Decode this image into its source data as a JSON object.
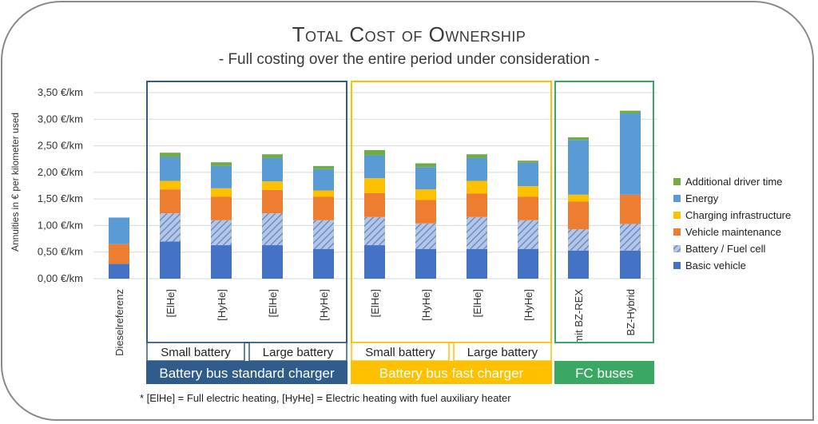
{
  "chart_data": {
    "type": "bar",
    "stacked": true,
    "title": "Total Cost of Ownership",
    "subtitle": "- Full costing over the entire period under consideration -",
    "ylabel": "Annuities in € per kilometer used",
    "ylim": [
      0,
      3.5
    ],
    "yticks": [
      "0,00 €/km",
      "0,50 €/km",
      "1,00 €/km",
      "1,50 €/km",
      "2,00 €/km",
      "2,50 €/km",
      "3,00 €/km",
      "3,50 €/km"
    ],
    "grid": true,
    "legend_position": "right",
    "categories": [
      "Dieselreferenz",
      "[ElHe]",
      "[HyHe]",
      "[ElHe]",
      "[HyHe]",
      "[ElHe]",
      "[HyHe]",
      "[ElHe]",
      "[HyHe]",
      "mit BZ-REX",
      "BZ-Hybrid"
    ],
    "series": [
      {
        "name": "Basic vehicle",
        "color": "#4472c4",
        "values": [
          0.28,
          0.7,
          0.63,
          0.63,
          0.56,
          0.63,
          0.56,
          0.56,
          0.56,
          0.53,
          0.53
        ]
      },
      {
        "name": "Battery / Fuel cell",
        "color": "#8fa9d6",
        "hatched": true,
        "values": [
          0,
          0.53,
          0.47,
          0.6,
          0.54,
          0.53,
          0.48,
          0.6,
          0.54,
          0.4,
          0.5
        ]
      },
      {
        "name": "Vehicle maintenance",
        "color": "#ed7d31",
        "values": [
          0.37,
          0.45,
          0.44,
          0.44,
          0.44,
          0.45,
          0.44,
          0.44,
          0.44,
          0.52,
          0.55
        ]
      },
      {
        "name": "Charging infrastructure",
        "color": "#ffc000",
        "values": [
          0,
          0.16,
          0.16,
          0.16,
          0.12,
          0.28,
          0.2,
          0.24,
          0.2,
          0.13,
          0.0
        ]
      },
      {
        "name": "Energy",
        "color": "#5b9bd5",
        "values": [
          0.5,
          0.45,
          0.42,
          0.44,
          0.4,
          0.43,
          0.42,
          0.43,
          0.44,
          1.03,
          1.53
        ]
      },
      {
        "name": "Additional driver time",
        "color": "#70ad47",
        "values": [
          0,
          0.08,
          0.07,
          0.07,
          0.06,
          0.1,
          0.07,
          0.07,
          0.04,
          0.05,
          0.05
        ]
      }
    ],
    "groups": [
      {
        "label": "Battery bus standard charger",
        "color": "#2f5c8a",
        "first": 1,
        "last": 4,
        "subgroups": [
          {
            "label": "Small battery",
            "first": 1,
            "last": 2
          },
          {
            "label": "Large battery",
            "first": 3,
            "last": 4
          }
        ]
      },
      {
        "label": "Battery bus fast charger",
        "color": "#ffc000",
        "first": 5,
        "last": 8,
        "subgroups": [
          {
            "label": "Small battery",
            "first": 5,
            "last": 6
          },
          {
            "label": "Large battery",
            "first": 7,
            "last": 8
          }
        ]
      },
      {
        "label": "FC buses",
        "color": "#3aa864",
        "first": 9,
        "last": 10,
        "subgroups": []
      }
    ],
    "footnote": "* [ElHe] = Full electric heating, [HyHe] = Electric heating with fuel auxiliary heater"
  }
}
